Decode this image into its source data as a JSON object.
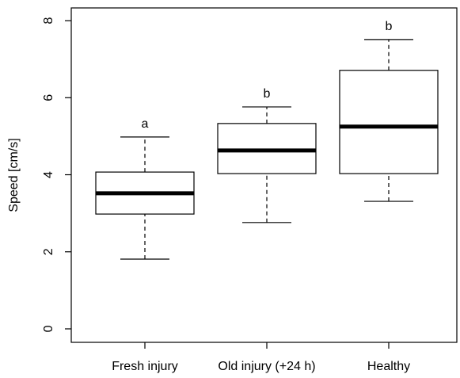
{
  "chart_data": {
    "type": "box",
    "y_label": "Speed [cm/s]",
    "categories": [
      "Fresh injury",
      "Old injury (+24 h)",
      "Healthy"
    ],
    "min": [
      1.81,
      2.76,
      3.31
    ],
    "q1": [
      2.98,
      4.03,
      4.03
    ],
    "median": [
      3.52,
      4.63,
      5.25
    ],
    "q3": [
      4.07,
      5.33,
      6.71
    ],
    "max": [
      4.98,
      5.76,
      7.51
    ],
    "group_labels": [
      "a",
      "b",
      "b"
    ],
    "ylim": [
      -0.35,
      8.33
    ],
    "yticks": [
      0,
      2,
      4,
      6,
      8
    ],
    "color": "#ffffff"
  }
}
